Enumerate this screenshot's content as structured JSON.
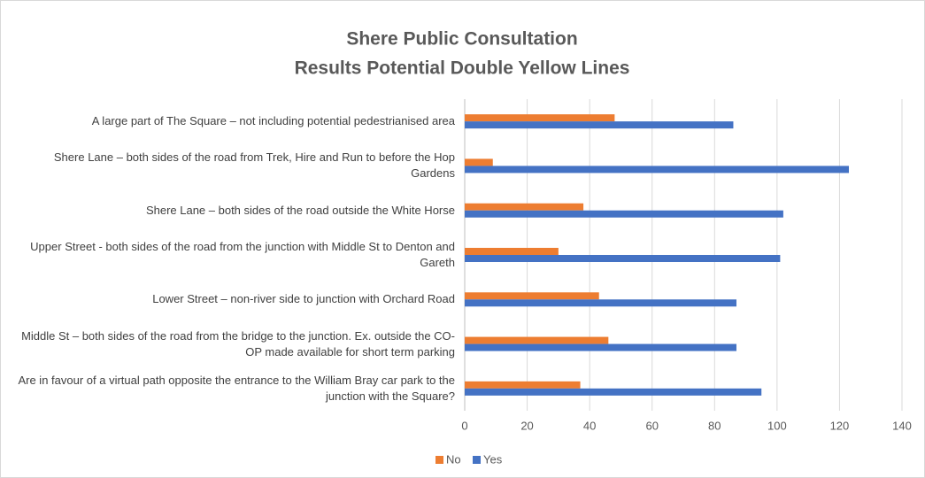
{
  "chart_data": {
    "type": "bar",
    "orientation": "horizontal",
    "title": [
      "Shere Public Consultation",
      "Results Potential Double Yellow Lines"
    ],
    "categories": [
      "A large part of The Square – not including potential pedestrianised area",
      "Shere Lane – both sides of the road from Trek, Hire and Run to before the Hop Gardens",
      "Shere Lane – both sides of the road outside the White Horse",
      "Upper Street - both sides of the road from the junction with Middle St to Denton and Gareth",
      "Lower Street – non-river side to junction with Orchard Road",
      "Middle St – both sides of the road from the bridge to the junction. Ex. outside the CO-OP made available for short term parking",
      "Are in favour of a virtual path opposite the entrance to the William Bray car park to the junction with the Square?"
    ],
    "series": [
      {
        "name": "No",
        "color": "#ed7d31",
        "values": [
          48,
          9,
          38,
          30,
          43,
          46,
          37
        ]
      },
      {
        "name": "Yes",
        "color": "#4472c4",
        "values": [
          86,
          123,
          102,
          101,
          87,
          87,
          95
        ]
      }
    ],
    "xlim": [
      0,
      140
    ],
    "xticks": [
      0,
      20,
      40,
      60,
      80,
      100,
      120,
      140
    ],
    "grid": true,
    "legend": "bottom"
  }
}
